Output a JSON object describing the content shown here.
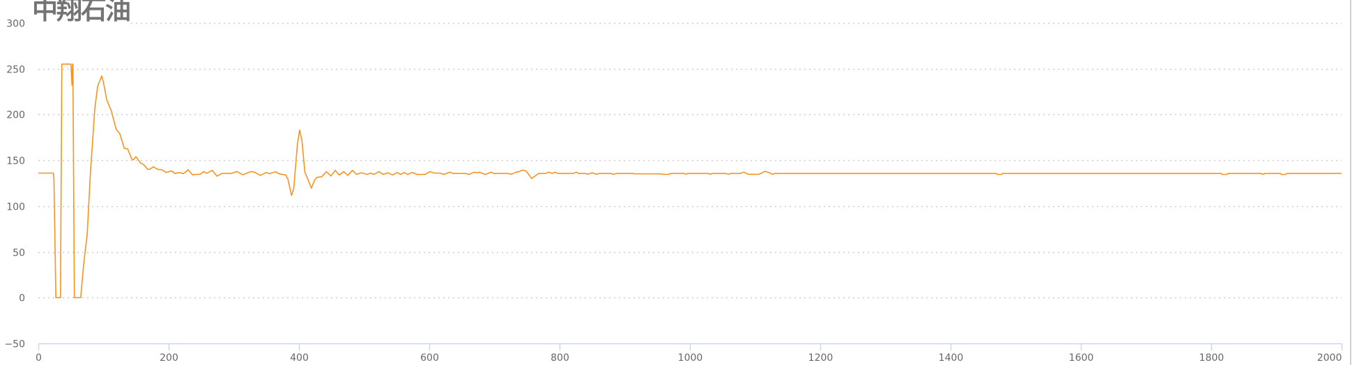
{
  "logo": {
    "text": "中翔石油"
  },
  "chart_data": {
    "type": "line",
    "title": "",
    "xlabel": "",
    "ylabel": "",
    "xlim": [
      0,
      2000
    ],
    "ylim": [
      -50,
      300
    ],
    "x_ticks": [
      "0",
      "200",
      "400",
      "600",
      "800",
      "1000",
      "1200",
      "1400",
      "1600",
      "1800",
      "2000"
    ],
    "y_ticks": [
      "300",
      "250",
      "200",
      "150",
      "100",
      "50",
      "0",
      "-50"
    ],
    "grid": "horizontal dotted",
    "legend": "none",
    "colors": {
      "line": "#f7931e",
      "grid": "#cccccc",
      "axis": "#ccd6eb",
      "label": "#666666"
    },
    "series": [
      {
        "points": [
          [
            0,
            136
          ],
          [
            23,
            136
          ],
          [
            24,
            130
          ],
          [
            27,
            0
          ],
          [
            34,
            0
          ],
          [
            36,
            255
          ],
          [
            50,
            255
          ],
          [
            51.7,
            232
          ],
          [
            52.5,
            255
          ],
          [
            53,
            255
          ],
          [
            55.3,
            0
          ],
          [
            65,
            0
          ],
          [
            69.5,
            36
          ],
          [
            75,
            69
          ],
          [
            80,
            137
          ],
          [
            86.6,
            206
          ],
          [
            91,
            231
          ],
          [
            97.3,
            242
          ],
          [
            99.7,
            236
          ],
          [
            105,
            216
          ],
          [
            109,
            209
          ],
          [
            112,
            204
          ],
          [
            119.5,
            184
          ],
          [
            125,
            179
          ],
          [
            132,
            163
          ],
          [
            137,
            162.5
          ],
          [
            143.6,
            151
          ],
          [
            146,
            150.5
          ],
          [
            149.7,
            154
          ],
          [
            157,
            147
          ],
          [
            162,
            145
          ],
          [
            168,
            140
          ],
          [
            171,
            140.3
          ],
          [
            176.5,
            142.8
          ],
          [
            183.6,
            140
          ],
          [
            189.7,
            139.7
          ],
          [
            196,
            136.7
          ],
          [
            204,
            138.5
          ],
          [
            210,
            135.5
          ],
          [
            215.7,
            136.7
          ],
          [
            222.8,
            135.5
          ],
          [
            229.9,
            139.7
          ],
          [
            236.4,
            134.2
          ],
          [
            244,
            134.7
          ],
          [
            248,
            134.7
          ],
          [
            254,
            137.7
          ],
          [
            258,
            135.7
          ],
          [
            267,
            139
          ],
          [
            274,
            132.7
          ],
          [
            281.6,
            135.7
          ],
          [
            296,
            135.7
          ],
          [
            305,
            137.7
          ],
          [
            313.9,
            134.2
          ],
          [
            326.4,
            137.7
          ],
          [
            331.7,
            137
          ],
          [
            340.6,
            133.5
          ],
          [
            349.6,
            136.7
          ],
          [
            355,
            135.5
          ],
          [
            363.6,
            137.5
          ],
          [
            370.8,
            135
          ],
          [
            379.7,
            134
          ],
          [
            383,
            129.5
          ],
          [
            388.6,
            111.6
          ],
          [
            392,
            119
          ],
          [
            397.5,
            167
          ],
          [
            401,
            183
          ],
          [
            404.5,
            172
          ],
          [
            409,
            137
          ],
          [
            413.6,
            129.6
          ],
          [
            419,
            119.5
          ],
          [
            424,
            128.4
          ],
          [
            427.8,
            131.4
          ],
          [
            435,
            132
          ],
          [
            442,
            137.6
          ],
          [
            449,
            132.8
          ],
          [
            455.6,
            139
          ],
          [
            461.7,
            134
          ],
          [
            468.8,
            137.6
          ],
          [
            475,
            133.5
          ],
          [
            482,
            139
          ],
          [
            488.5,
            134.6
          ],
          [
            495.6,
            136.4
          ],
          [
            504.6,
            134.6
          ],
          [
            510,
            136
          ],
          [
            515,
            134.6
          ],
          [
            522.3,
            137.6
          ],
          [
            529.4,
            134.6
          ],
          [
            536.6,
            136.4
          ],
          [
            543.7,
            134
          ],
          [
            550.8,
            136.7
          ],
          [
            556,
            134.6
          ],
          [
            561.5,
            136.7
          ],
          [
            567,
            134.6
          ],
          [
            574,
            136.7
          ],
          [
            581,
            134.6
          ],
          [
            593.6,
            134.6
          ],
          [
            600.7,
            137.6
          ],
          [
            607.8,
            136
          ],
          [
            616.7,
            136
          ],
          [
            622,
            134.5
          ],
          [
            631,
            137
          ],
          [
            636,
            135.7
          ],
          [
            655.6,
            135.7
          ],
          [
            661,
            134.5
          ],
          [
            668.4,
            137
          ],
          [
            674,
            136.4
          ],
          [
            677,
            137
          ],
          [
            686,
            134.5
          ],
          [
            695,
            137
          ],
          [
            698.6,
            135.7
          ],
          [
            720,
            135.7
          ],
          [
            725.5,
            134.7
          ],
          [
            733,
            137
          ],
          [
            738,
            137.6
          ],
          [
            743.6,
            139.4
          ],
          [
            749,
            138
          ],
          [
            757,
            130.2
          ],
          [
            768,
            135.7
          ],
          [
            779,
            135.7
          ],
          [
            782.6,
            137
          ],
          [
            789,
            135.7
          ],
          [
            793.3,
            137
          ],
          [
            797,
            135.7
          ],
          [
            821.5,
            135.7
          ],
          [
            825.4,
            137
          ],
          [
            829,
            135.7
          ],
          [
            839.6,
            135.7
          ],
          [
            843,
            134.7
          ],
          [
            850,
            136.4
          ],
          [
            856.7,
            134.7
          ],
          [
            861,
            135.7
          ],
          [
            879,
            135.7
          ],
          [
            882,
            134.7
          ],
          [
            888,
            135.7
          ],
          [
            912.6,
            135.7
          ],
          [
            914.4,
            135.2
          ],
          [
            955,
            135.2
          ],
          [
            959,
            134.7
          ],
          [
            968,
            134.7
          ],
          [
            969.7,
            135.7
          ],
          [
            991,
            135.7
          ],
          [
            993.6,
            134.7
          ],
          [
            996.5,
            135.7
          ],
          [
            1028.5,
            135.7
          ],
          [
            1031,
            134.7
          ],
          [
            1034,
            135.7
          ],
          [
            1055,
            135.7
          ],
          [
            1059,
            134.7
          ],
          [
            1062,
            135.7
          ],
          [
            1078,
            135.7
          ],
          [
            1082,
            137
          ],
          [
            1084.5,
            136.5
          ],
          [
            1090,
            134.7
          ],
          [
            1105,
            134.7
          ],
          [
            1109,
            135.7
          ],
          [
            1115,
            138
          ],
          [
            1121,
            136.7
          ],
          [
            1126.6,
            134.7
          ],
          [
            1130,
            135.7
          ],
          [
            1470,
            135.7
          ],
          [
            1472,
            134.5
          ],
          [
            1478,
            134.5
          ],
          [
            1480,
            135.7
          ],
          [
            1815,
            135.7
          ],
          [
            1817,
            134.5
          ],
          [
            1824,
            134.5
          ],
          [
            1826,
            135.7
          ],
          [
            1877,
            135.7
          ],
          [
            1878,
            134.8
          ],
          [
            1881,
            134.8
          ],
          [
            1882,
            135.7
          ],
          [
            1906,
            135.7
          ],
          [
            1908,
            134.5
          ],
          [
            1914,
            134.5
          ],
          [
            1916,
            135.7
          ],
          [
            2000,
            135.7
          ]
        ]
      }
    ]
  }
}
